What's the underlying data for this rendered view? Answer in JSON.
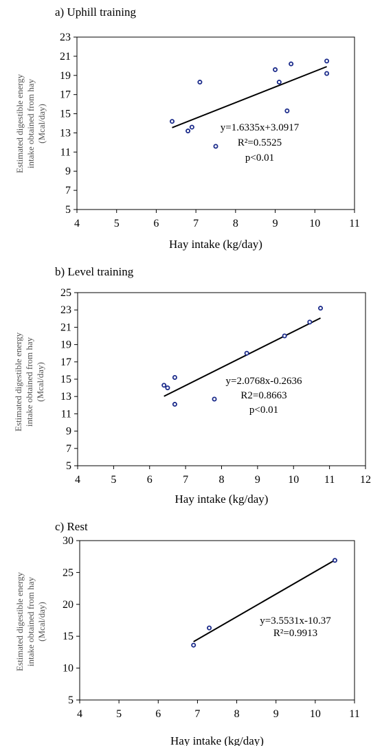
{
  "chart_data": [
    {
      "type": "scatter",
      "title": "a) Uphill training",
      "xlabel": "Hay intake (kg/day)",
      "ylabel": [
        "Estimated digestible energy",
        "intake obtained from hay",
        "(Mcal/day)"
      ],
      "xlim": [
        4,
        11
      ],
      "ylim": [
        5,
        23
      ],
      "xticks": [
        "4",
        "5",
        "6",
        "7",
        "8",
        "9",
        "10",
        "11"
      ],
      "yticks": [
        "5",
        "7",
        "9",
        "11",
        "13",
        "15",
        "17",
        "19",
        "21",
        "23"
      ],
      "points": [
        {
          "x": 6.4,
          "y": 14.2
        },
        {
          "x": 6.8,
          "y": 13.2
        },
        {
          "x": 6.9,
          "y": 13.6
        },
        {
          "x": 7.1,
          "y": 18.3
        },
        {
          "x": 7.5,
          "y": 11.6
        },
        {
          "x": 9.0,
          "y": 19.6
        },
        {
          "x": 9.1,
          "y": 18.3
        },
        {
          "x": 9.3,
          "y": 15.3
        },
        {
          "x": 9.4,
          "y": 20.2
        },
        {
          "x": 10.3,
          "y": 20.5
        },
        {
          "x": 10.3,
          "y": 19.2
        }
      ],
      "trendline": {
        "slope": 1.6335,
        "intercept": 3.0917,
        "x_range": [
          6.4,
          10.3
        ]
      },
      "annotations": [
        "y=1.6335x+3.0917",
        "R²=0.5525",
        "p<0.01"
      ]
    },
    {
      "type": "scatter",
      "title": "b) Level training",
      "xlabel": "Hay intake (kg/day)",
      "ylabel": [
        "Estimated digestible energy",
        "intake obtained from hay",
        "(Mcal/day)"
      ],
      "xlim": [
        4,
        12
      ],
      "ylim": [
        5,
        25
      ],
      "xticks": [
        "4",
        "5",
        "6",
        "7",
        "8",
        "9",
        "10",
        "11",
        "12"
      ],
      "yticks": [
        "5",
        "7",
        "9",
        "11",
        "13",
        "15",
        "17",
        "19",
        "21",
        "23",
        "25"
      ],
      "points": [
        {
          "x": 6.4,
          "y": 14.3
        },
        {
          "x": 6.5,
          "y": 14.0
        },
        {
          "x": 6.7,
          "y": 15.2
        },
        {
          "x": 6.7,
          "y": 12.1
        },
        {
          "x": 7.8,
          "y": 12.7
        },
        {
          "x": 8.7,
          "y": 18.0
        },
        {
          "x": 9.75,
          "y": 20.0
        },
        {
          "x": 10.45,
          "y": 21.6
        },
        {
          "x": 10.75,
          "y": 23.2
        }
      ],
      "trendline": {
        "slope": 2.0768,
        "intercept": -0.2636,
        "x_range": [
          6.4,
          10.75
        ]
      },
      "annotations": [
        "y=2.0768x-0.2636",
        "R2=0.8663",
        "p<0.01"
      ]
    },
    {
      "type": "scatter",
      "title": "c) Rest",
      "xlabel": "Hay intake (kg/day)",
      "ylabel": [
        "Estimated digestible energy",
        "intake obtained from hay",
        "(Mcal/day)"
      ],
      "xlim": [
        4,
        11
      ],
      "ylim": [
        5,
        30
      ],
      "xticks": [
        "4",
        "5",
        "6",
        "7",
        "8",
        "9",
        "10",
        "11"
      ],
      "yticks": [
        "5",
        "10",
        "15",
        "20",
        "25",
        "30"
      ],
      "points": [
        {
          "x": 6.9,
          "y": 13.6
        },
        {
          "x": 7.3,
          "y": 16.3
        },
        {
          "x": 10.5,
          "y": 26.9
        }
      ],
      "trendline": {
        "slope": 3.5531,
        "intercept": -10.37,
        "x_range": [
          6.9,
          10.5
        ]
      },
      "annotations": [
        "y=3.5531x-10.37",
        "R²=0.9913"
      ]
    }
  ]
}
